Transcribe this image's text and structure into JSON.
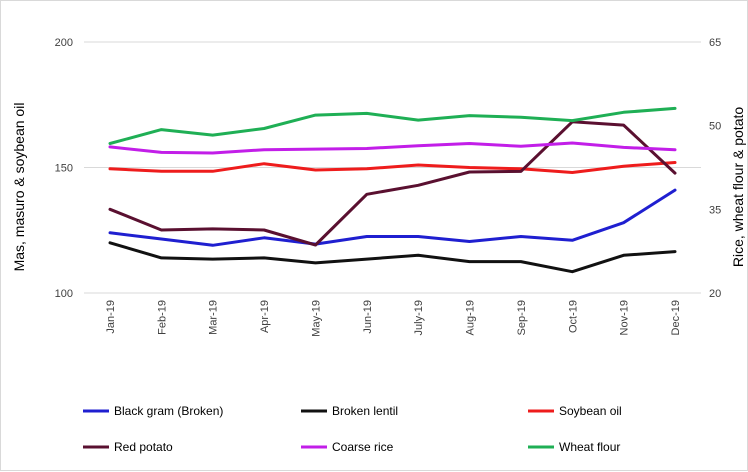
{
  "chart_data": {
    "type": "line",
    "title": "",
    "xlabel": "",
    "ylabel": "Mas, masuro & soybean oil",
    "y2label": "Rice, wheat flour & potato",
    "categories": [
      "Jan-19",
      "Feb-19",
      "Mar-19",
      "Apr-19",
      "May-19",
      "Jun-19",
      "July-19",
      "Aug-19",
      "Sep-19",
      "Oct-19",
      "Nov-19",
      "Dec-19"
    ],
    "ylim": [
      100,
      200
    ],
    "yticks": [
      100,
      150,
      200
    ],
    "y2lim": [
      20,
      65
    ],
    "y2ticks": [
      20,
      35,
      50,
      65
    ],
    "grid": true,
    "legend_position": "bottom",
    "series": [
      {
        "name": "Black gram (Broken)",
        "axis": "left",
        "color": "#1f1fd0",
        "values": [
          124,
          121.5,
          119,
          122,
          119.5,
          122.5,
          122.5,
          120.5,
          122.5,
          121,
          128,
          141
        ]
      },
      {
        "name": "Broken lentil",
        "axis": "left",
        "color": "#111111",
        "values": [
          120,
          114,
          113.5,
          114,
          112,
          113.5,
          115,
          112.5,
          112.5,
          108.5,
          115,
          116.5
        ]
      },
      {
        "name": "Soybean oil",
        "axis": "left",
        "color": "#ee1c1c",
        "values": [
          149.5,
          148.5,
          148.5,
          151.5,
          149,
          149.5,
          151,
          150,
          149.5,
          148,
          150.5,
          152
        ]
      },
      {
        "name": "Red potato",
        "axis": "right",
        "color": "#5a1030",
        "values": [
          35,
          31.3,
          31.5,
          31.3,
          28.6,
          37.7,
          39.3,
          41.7,
          41.8,
          50.7,
          50.1,
          41.5
        ]
      },
      {
        "name": "Coarse rice",
        "axis": "right",
        "color": "#c21ee8",
        "values": [
          46.2,
          45.2,
          45.1,
          45.7,
          45.8,
          45.9,
          46.4,
          46.8,
          46.3,
          46.9,
          46.1,
          45.7
        ]
      },
      {
        "name": "Wheat flour",
        "axis": "right",
        "color": "#1faf55",
        "values": [
          46.8,
          49.3,
          48.3,
          49.5,
          51.9,
          52.2,
          51,
          51.8,
          51.5,
          50.9,
          52.4,
          53.1
        ]
      }
    ]
  }
}
